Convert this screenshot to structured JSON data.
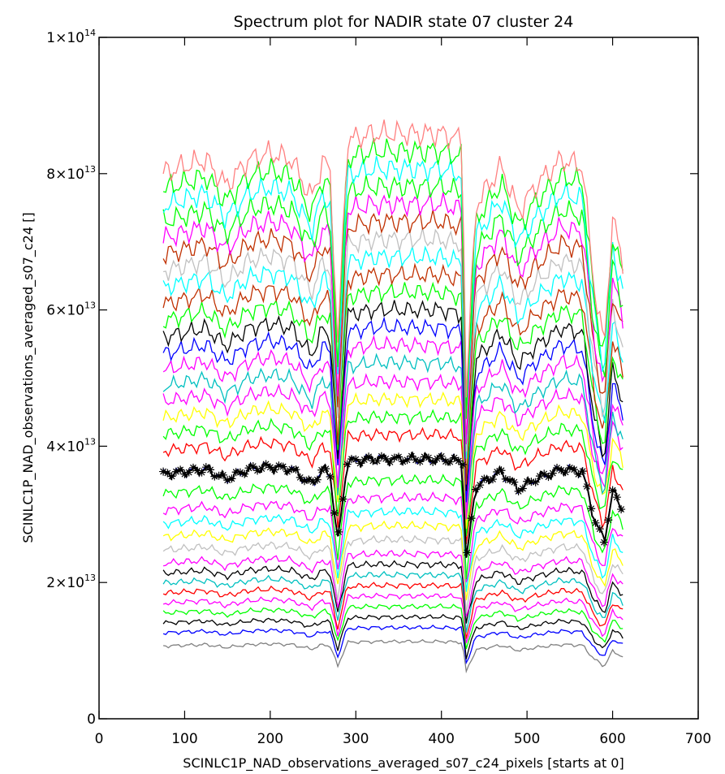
{
  "chart_data": {
    "type": "line",
    "title": "Spectrum plot for NADIR state 07 cluster 24",
    "xlabel": "SCINLC1P_NAD_observations_averaged_s07_c24_pixels [starts at 0]",
    "ylabel": "SCINLC1P_NAD_observations_averaged_s07_c24 []",
    "xlim": [
      0,
      700
    ],
    "ylim": [
      0,
      100000000000000.0
    ],
    "x_ticks": [
      {
        "value": 0,
        "label": "0"
      },
      {
        "value": 100,
        "label": "100"
      },
      {
        "value": 200,
        "label": "200"
      },
      {
        "value": 300,
        "label": "300"
      },
      {
        "value": 400,
        "label": "400"
      },
      {
        "value": 500,
        "label": "500"
      },
      {
        "value": 600,
        "label": "600"
      },
      {
        "value": 700,
        "label": "700"
      }
    ],
    "y_ticks": [
      {
        "value": 0,
        "mantissa": "0",
        "exponent": ""
      },
      {
        "value": 20000000000000.0,
        "mantissa": "2×10",
        "exponent": "13"
      },
      {
        "value": 40000000000000.0,
        "mantissa": "4×10",
        "exponent": "13"
      },
      {
        "value": 60000000000000.0,
        "mantissa": "6×10",
        "exponent": "13"
      },
      {
        "value": 80000000000000.0,
        "mantissa": "8×10",
        "exponent": "13"
      },
      {
        "value": 100000000000000.0,
        "mantissa": "1×10",
        "exponent": "14"
      }
    ],
    "x_range_data": [
      75,
      612
    ],
    "approx_shape": {
      "x": [
        75,
        100,
        125,
        148,
        175,
        200,
        225,
        248,
        262,
        270,
        279,
        290,
        320,
        360,
        400,
        425,
        428,
        440,
        470,
        490,
        510,
        540,
        565,
        578,
        590,
        600,
        612
      ],
      "relative": [
        0.97,
        0.98,
        0.99,
        0.95,
        0.99,
        1.0,
        0.99,
        0.93,
        0.99,
        0.97,
        0.7,
        1.02,
        1.03,
        1.03,
        1.03,
        1.02,
        0.6,
        0.92,
        0.98,
        0.91,
        0.95,
        0.99,
        0.98,
        0.8,
        0.7,
        0.9,
        0.83
      ]
    },
    "series_levels": [
      11000000000000.0,
      13000000000000.0,
      14500000000000.0,
      16000000000000.0,
      17500000000000.0,
      19000000000000.0,
      20500000000000.0,
      22000000000000.0,
      23500000000000.0,
      25500000000000.0,
      27500000000000.0,
      29500000000000.0,
      31500000000000.0,
      34000000000000.0,
      37000000000000.0,
      40500000000000.0,
      43000000000000.0,
      45500000000000.0,
      48000000000000.0,
      50500000000000.0,
      53000000000000.0,
      55500000000000.0,
      58000000000000.0,
      60500000000000.0,
      63000000000000.0,
      65500000000000.0,
      68000000000000.0,
      70500000000000.0,
      73000000000000.0,
      75500000000000.0,
      78000000000000.0,
      80500000000000.0,
      83000000000000.0
    ],
    "series_colors": [
      "#808080",
      "#0000ff",
      "#000000",
      "#00ff00",
      "#ff00ff",
      "#ff0000",
      "#00c0c0",
      "#000000",
      "#ff00ff",
      "#c0c0c0",
      "#ffff00",
      "#00ffff",
      "#ff00ff",
      "#00ff00",
      "#0000ff",
      "#ff0000",
      "#00ff00",
      "#ffff00",
      "#ff00ff",
      "#00c0c0",
      "#ff00ff",
      "#0000ff",
      "#000000",
      "#00ff00",
      "#c03000",
      "#00ffff",
      "#c0c0c0",
      "#c03000",
      "#ff00ff",
      "#00ff00",
      "#00ffff",
      "#00ff00",
      "#ff8080"
    ],
    "highlighted_series": {
      "level": 37000000000000.0,
      "color": "#000000",
      "marker": "asterisk"
    },
    "grid": false,
    "legend": "none"
  }
}
